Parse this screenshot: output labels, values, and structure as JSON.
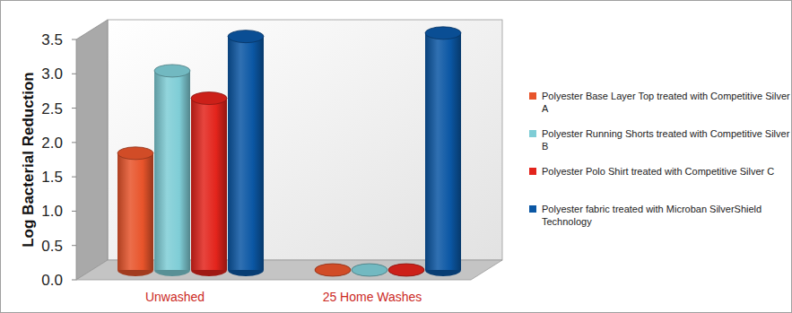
{
  "chart_data": {
    "type": "bar",
    "y_label": "Log Bacterial Reduction",
    "categories": [
      "Unwashed",
      "25 Home Washes"
    ],
    "series": [
      {
        "name": "Polyester Base Layer Top treated with Competitive Silver A",
        "color": "#e8542b",
        "values": [
          1.7,
          0
        ]
      },
      {
        "name": "Polyester Running Shorts treated with Competitive Silver B",
        "color": "#7fcdd6",
        "values": [
          2.9,
          0
        ]
      },
      {
        "name": "Polyester Polo Shirt treated with Competitive Silver C",
        "color": "#e3241c",
        "values": [
          2.5,
          0
        ]
      },
      {
        "name": "Polyester fabric treated with Microban SilverShield Technology",
        "color": "#0b57a4",
        "values": [
          3.4,
          3.45
        ]
      }
    ],
    "ylim": [
      0,
      3.5
    ],
    "yticks": [
      {
        "value": 0,
        "label": "0.0"
      },
      0.5,
      {
        "value": 1,
        "label": "1.0"
      },
      1.5,
      {
        "value": 2,
        "label": "2.0"
      },
      2.5,
      {
        "value": 3,
        "label": "3.0"
      },
      3.5
    ],
    "grid": false,
    "legend": "right"
  }
}
